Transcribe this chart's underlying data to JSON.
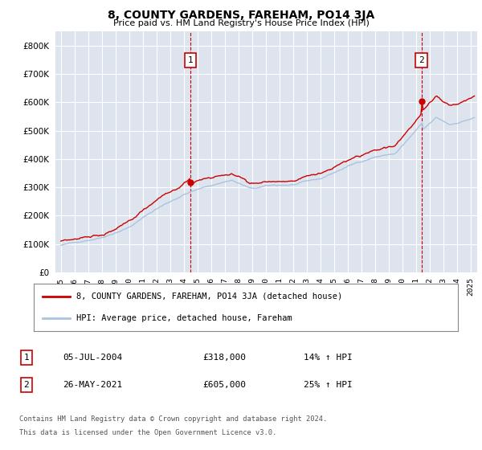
{
  "title": "8, COUNTY GARDENS, FAREHAM, PO14 3JA",
  "subtitle": "Price paid vs. HM Land Registry's House Price Index (HPI)",
  "ytick_vals": [
    0,
    100000,
    200000,
    300000,
    400000,
    500000,
    600000,
    700000,
    800000
  ],
  "ylim": [
    0,
    850000
  ],
  "hpi_color": "#aac4e0",
  "price_color": "#cc0000",
  "fig_bg": "#ffffff",
  "plot_bg": "#dde4ee",
  "grid_color": "#ffffff",
  "marker1_year": 2004.5,
  "marker1_price": 318000,
  "marker2_year": 2021.42,
  "marker2_price": 605000,
  "legend_line1": "8, COUNTY GARDENS, FAREHAM, PO14 3JA (detached house)",
  "legend_line2": "HPI: Average price, detached house, Fareham",
  "footer1": "Contains HM Land Registry data © Crown copyright and database right 2024.",
  "footer2": "This data is licensed under the Open Government Licence v3.0.",
  "table_row1": [
    "1",
    "05-JUL-2004",
    "£318,000",
    "14% ↑ HPI"
  ],
  "table_row2": [
    "2",
    "26-MAY-2021",
    "£605,000",
    "25% ↑ HPI"
  ]
}
